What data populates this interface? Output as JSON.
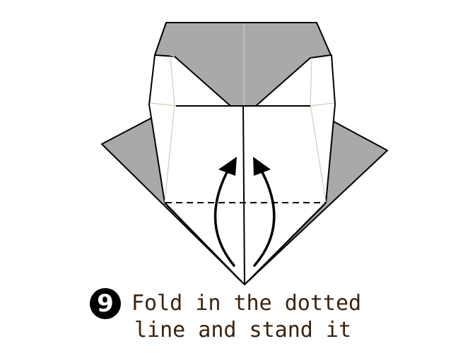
{
  "step": {
    "number": "9"
  },
  "instruction": {
    "line_1": "Fold in the dotted",
    "line_2": "line and stand it"
  },
  "colors": {
    "paper_colored": "#a9a9a9",
    "paper_white": "#ffffff",
    "outline": "#000000",
    "crease": "#c8d2b4",
    "text": "#3a2410"
  }
}
